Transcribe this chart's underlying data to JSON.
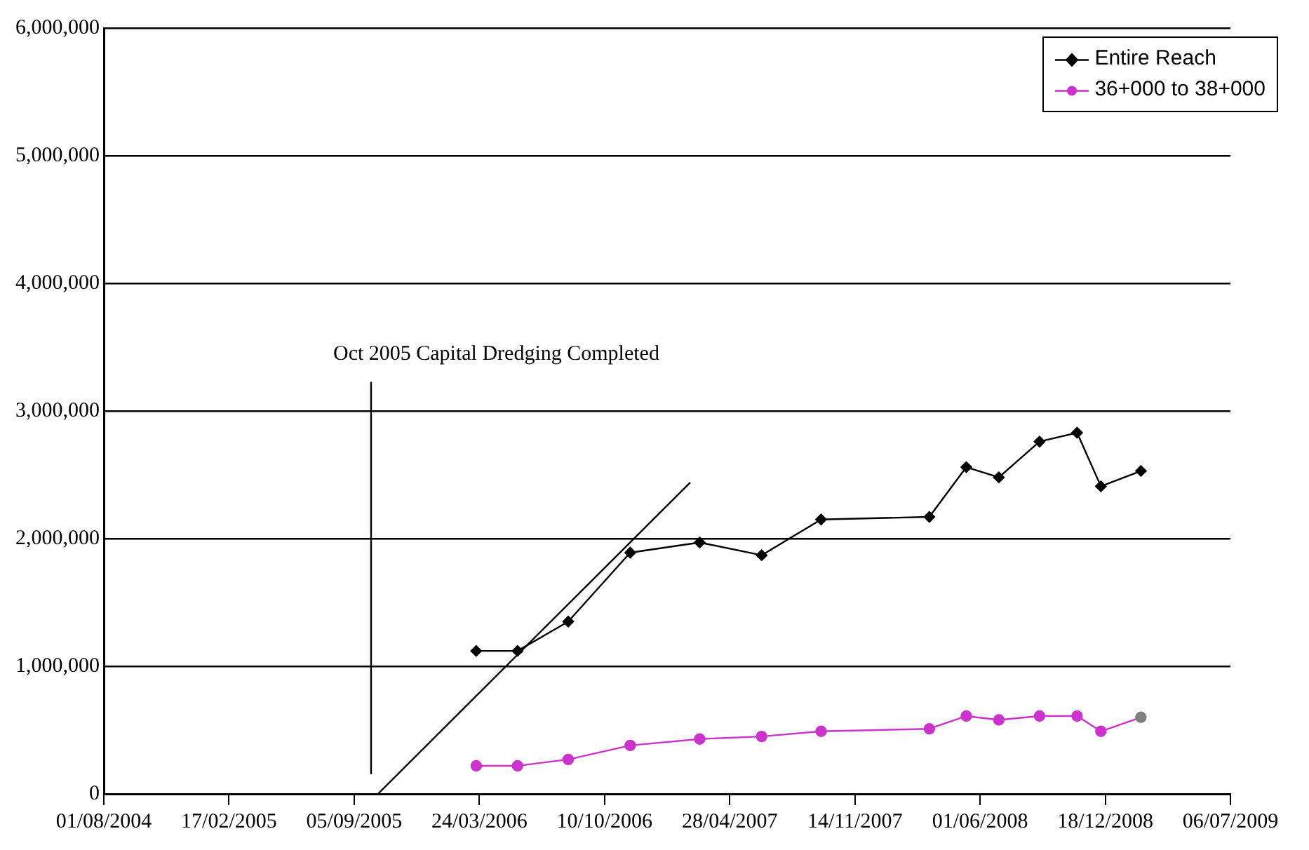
{
  "chart_data": {
    "type": "line",
    "x": [
      "2006-03-19",
      "2006-05-24",
      "2006-08-13",
      "2006-11-20",
      "2007-03-11",
      "2007-06-18",
      "2007-09-21",
      "2008-03-12",
      "2008-05-10",
      "2008-07-01",
      "2008-09-04",
      "2008-11-03",
      "2008-12-11",
      "2009-02-13"
    ],
    "series": [
      {
        "name": "Entire Reach",
        "color": "#000000",
        "marker": "diamond",
        "values": [
          1120000,
          1120000,
          1350000,
          1890000,
          1970000,
          1870000,
          2150000,
          2170000,
          2560000,
          2480000,
          2760000,
          2830000,
          2410000,
          2530000
        ]
      },
      {
        "name": "36+000 to 38+000",
        "color": "#cc33cc",
        "marker": "circle",
        "colors": [
          "#cc33cc",
          "#cc33cc",
          "#cc33cc",
          "#cc33cc",
          "#cc33cc",
          "#cc33cc",
          "#cc33cc",
          "#cc33cc",
          "#cc33cc",
          "#cc33cc",
          "#cc33cc",
          "#cc33cc",
          "#cc33cc",
          "#808080"
        ],
        "values": [
          220000,
          220000,
          270000,
          380000,
          430000,
          450000,
          490000,
          510000,
          610000,
          580000,
          610000,
          610000,
          490000,
          600000
        ]
      },
      {
        "type": "line",
        "color": "#000000",
        "marker": "none",
        "x": [
          "2005-10-13",
          "2007-02-24"
        ],
        "values": [
          0,
          2440000
        ]
      }
    ],
    "xlim": [
      "2004-08-01",
      "2009-07-06"
    ],
    "xticks": [
      {
        "value": "2004-08-01",
        "label": "01/08/2004"
      },
      {
        "value": "2005-02-17",
        "label": "17/02/2005"
      },
      {
        "value": "2005-09-05",
        "label": "05/09/2005"
      },
      {
        "value": "2006-03-24",
        "label": "24/03/2006"
      },
      {
        "value": "2006-10-10",
        "label": "10/10/2006"
      },
      {
        "value": "2007-04-28",
        "label": "28/04/2007"
      },
      {
        "value": "2007-11-14",
        "label": "14/11/2007"
      },
      {
        "value": "2008-06-01",
        "label": "01/06/2008"
      },
      {
        "value": "2008-12-18",
        "label": "18/12/2008"
      },
      {
        "value": "2009-07-06",
        "label": "06/07/2009"
      }
    ],
    "ylim": [
      0,
      6000000
    ],
    "yticks": [
      {
        "value": 0,
        "label": "0"
      },
      {
        "value": 1000000,
        "label": "1,000,000"
      },
      {
        "value": 2000000,
        "label": "2,000,000"
      },
      {
        "value": 3000000,
        "label": "3,000,000"
      },
      {
        "value": 4000000,
        "label": "4,000,000"
      },
      {
        "value": 5000000,
        "label": "5,000,000"
      },
      {
        "value": 6000000,
        "label": "6,000,000"
      }
    ],
    "grid": "y",
    "legend": "top right",
    "ref_lines": [
      {
        "axis": "x",
        "value": "2005-10-02",
        "label": "Oct 2005 Capital Dredging Completed",
        "color": "#000000"
      }
    ]
  }
}
